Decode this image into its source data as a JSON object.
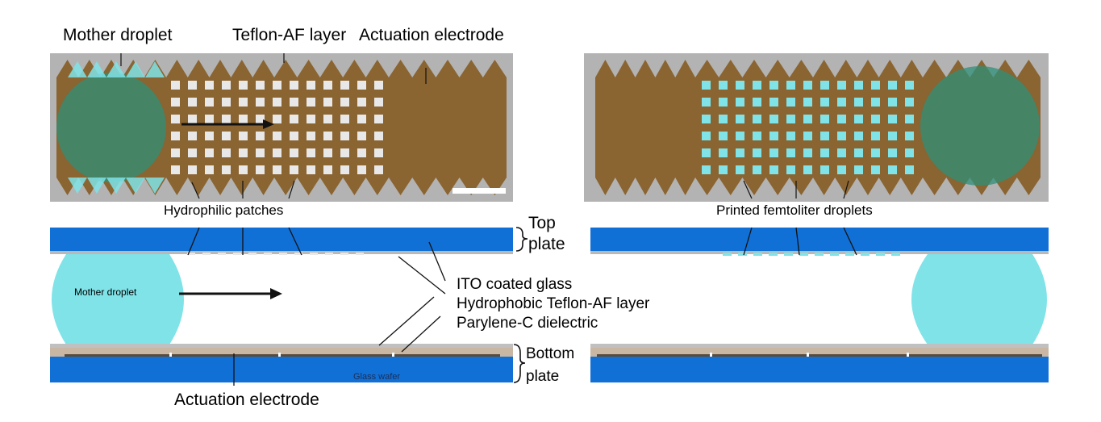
{
  "labels": {
    "top_left_1": "Mother droplet",
    "top_left_2": "Teflon-AF layer",
    "top_left_3": "Actuation electrode",
    "hydrophilic": "Hydrophilic patches",
    "printed": "Printed femtoliter droplets",
    "top_plate_1": "Top",
    "top_plate_2": "plate",
    "bottom_plate_1": "Bottom",
    "bottom_plate_2": "plate",
    "ito": "ITO coated glass",
    "teflon": "Hydrophobic Teflon-AF layer",
    "parylene": "Parylene-C dielectric",
    "mother_droplet_cs": "Mother droplet",
    "glass_wafer": "Glass wafer",
    "actuation_bottom": "Actuation electrode"
  },
  "colors": {
    "electrode": "#8a6431",
    "background_gray": "#b3b3b3",
    "droplet": "#7fe3e8",
    "droplet_dark": "#2f8f78",
    "glass_blue": "#1170d6",
    "dielectric": "#c9b7a3",
    "patch": "#e8e8e8"
  }
}
